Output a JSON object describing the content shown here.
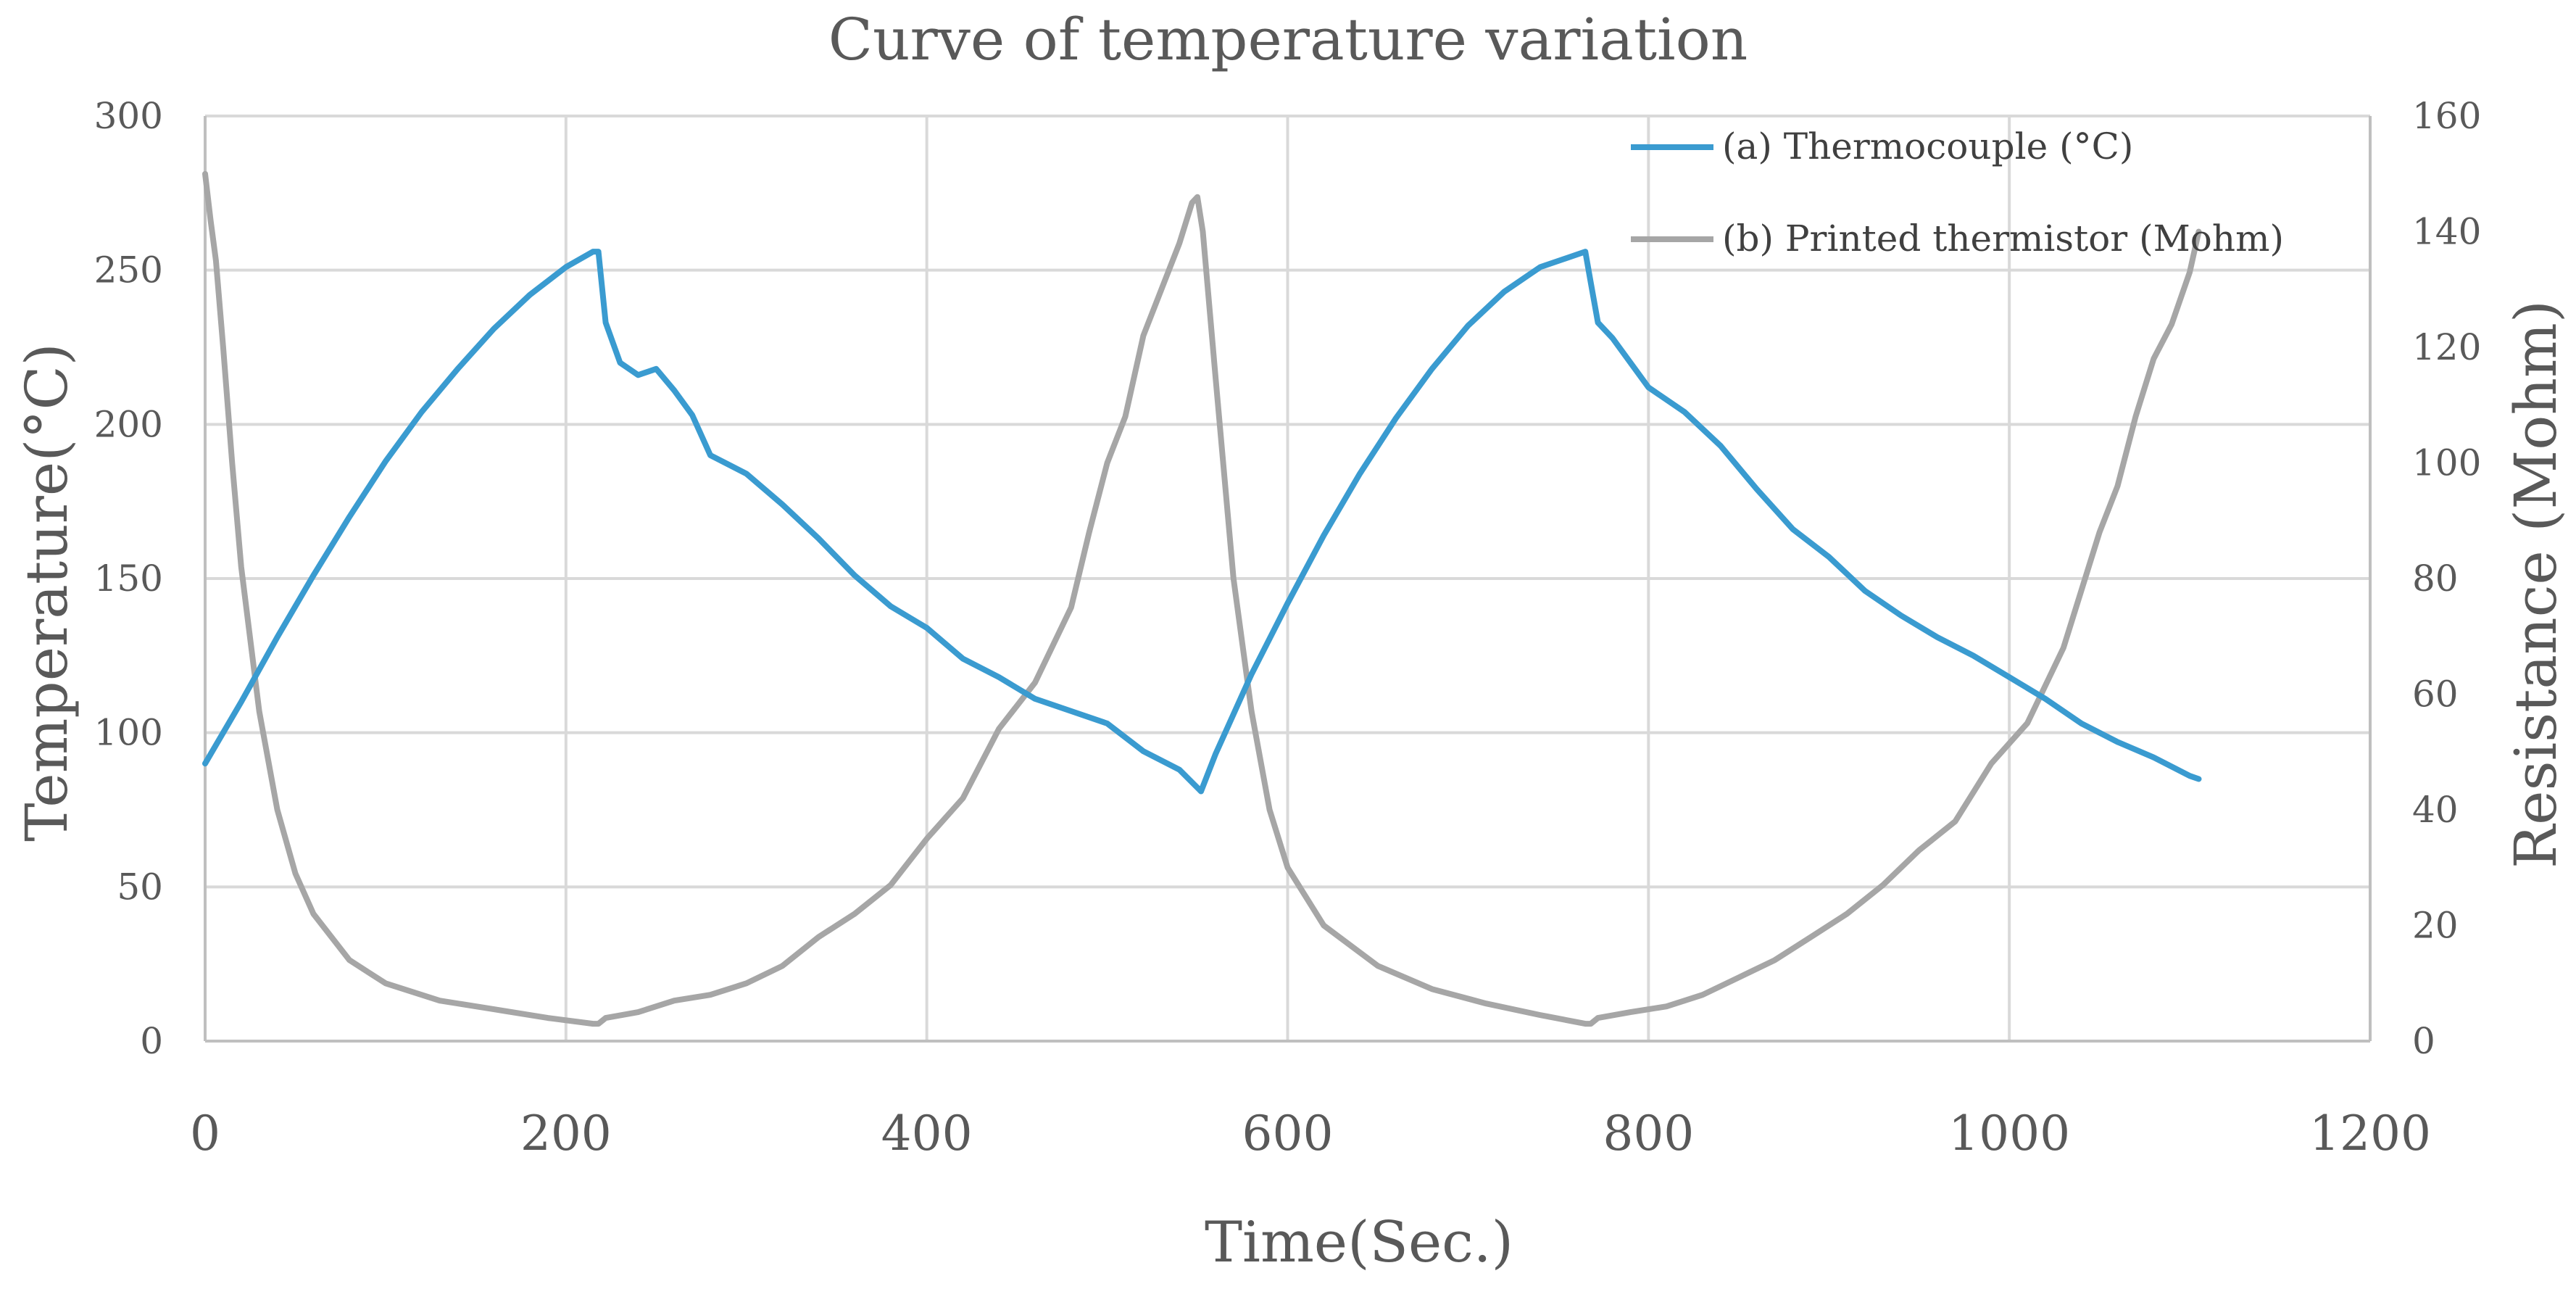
{
  "chart_data": {
    "type": "line",
    "title": "Curve of temperature variation",
    "xlabel": "Time(Sec.)",
    "ylabel": "Temperature(°C)",
    "y2label": "Resistance (Mohm)",
    "xlim": [
      0,
      1200
    ],
    "ylim": [
      0,
      300
    ],
    "y2lim": [
      0,
      160
    ],
    "xticks": [
      "0",
      "200",
      "400",
      "600",
      "800",
      "1000",
      "1200"
    ],
    "yticks": [
      "0",
      "50",
      "100",
      "150",
      "200",
      "250",
      "300"
    ],
    "y2ticks": [
      "0",
      "20",
      "40",
      "60",
      "80",
      "100",
      "120",
      "140",
      "160"
    ],
    "grid": true,
    "legend_position": "top-right",
    "colors": {
      "thermocouple": "#3a9bd0",
      "thermistor": "#a6a6a6",
      "text": "#595959"
    },
    "series": [
      {
        "name": "(a) Thermocouple (°C)",
        "axis": "left",
        "x": [
          0,
          20,
          40,
          60,
          80,
          100,
          120,
          140,
          160,
          180,
          200,
          215,
          218,
          222,
          230,
          240,
          250,
          260,
          270,
          280,
          300,
          320,
          340,
          360,
          380,
          400,
          420,
          440,
          460,
          480,
          500,
          520,
          540,
          552,
          560,
          580,
          600,
          620,
          640,
          660,
          680,
          700,
          720,
          740,
          760,
          765,
          768,
          772,
          780,
          800,
          820,
          840,
          860,
          880,
          900,
          920,
          940,
          960,
          980,
          1000,
          1020,
          1040,
          1060,
          1080,
          1100,
          1105
        ],
        "values": [
          90,
          110,
          131,
          151,
          170,
          188,
          204,
          218,
          231,
          242,
          251,
          256,
          256,
          233,
          220,
          216,
          218,
          211,
          203,
          190,
          184,
          174,
          163,
          151,
          141,
          134,
          124,
          118,
          111,
          107,
          103,
          94,
          88,
          81,
          93,
          119,
          142,
          164,
          184,
          202,
          218,
          232,
          243,
          251,
          255,
          256,
          246,
          233,
          228,
          212,
          204,
          193,
          179,
          166,
          157,
          146,
          138,
          131,
          125,
          118,
          111,
          103,
          97,
          92,
          86,
          85
        ]
      },
      {
        "name": "(b) Printed thermistor (Mohm)",
        "axis": "right",
        "x": [
          0,
          3,
          6,
          10,
          15,
          20,
          30,
          40,
          50,
          60,
          80,
          100,
          130,
          160,
          190,
          215,
          218,
          222,
          240,
          260,
          280,
          300,
          320,
          340,
          360,
          380,
          400,
          420,
          440,
          460,
          480,
          490,
          500,
          510,
          520,
          530,
          540,
          547,
          550,
          553,
          560,
          570,
          580,
          590,
          600,
          620,
          650,
          680,
          710,
          740,
          765,
          768,
          772,
          790,
          810,
          830,
          850,
          870,
          890,
          910,
          930,
          950,
          970,
          990,
          1010,
          1030,
          1040,
          1050,
          1060,
          1070,
          1080,
          1090,
          1100,
          1105
        ],
        "values": [
          150,
          142,
          135,
          120,
          100,
          82,
          57,
          40,
          29,
          22,
          14,
          10,
          7,
          5.5,
          4,
          3,
          3,
          4,
          5,
          7,
          8,
          10,
          13,
          18,
          22,
          27,
          35,
          42,
          54,
          62,
          75,
          88,
          100,
          108,
          122,
          130,
          138,
          145,
          146,
          140,
          115,
          80,
          57,
          40,
          30,
          20,
          13,
          9,
          6.5,
          4.5,
          3,
          3,
          4,
          5,
          6,
          8,
          11,
          14,
          18,
          22,
          27,
          33,
          38,
          48,
          55,
          68,
          78,
          88,
          96,
          108,
          118,
          124,
          133,
          140
        ]
      }
    ]
  }
}
